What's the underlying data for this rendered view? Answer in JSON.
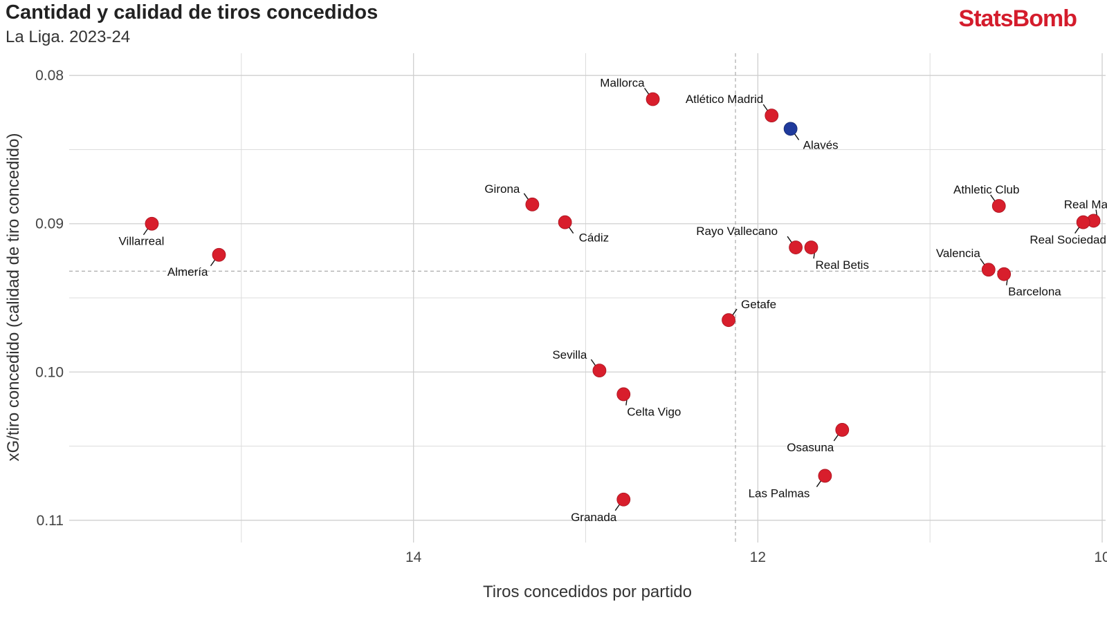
{
  "header": {
    "title": "Cantidad y calidad de tiros concedidos",
    "subtitle": "La Liga. 2023-24",
    "brand": "StatsBomb"
  },
  "colors": {
    "brand": "#d41c2c",
    "point": "#d81e2c",
    "highlight": "#1f3a9c",
    "grid": "#dcdcdc",
    "reference": "#aaaaaa"
  },
  "chart_data": {
    "type": "scatter",
    "xlabel": "Tiros concedidos por partido",
    "ylabel": "xG/tiro concedido (calidad de tiro concedido)",
    "x_reversed": true,
    "y_reversed": true,
    "xlim": [
      16.0,
      9.98
    ],
    "ylim": [
      0.0785,
      0.1115
    ],
    "x_ticks": [
      {
        "value": 14,
        "label": "14"
      },
      {
        "value": 12,
        "label": "12"
      },
      {
        "value": 10,
        "label": "10"
      }
    ],
    "y_ticks": [
      {
        "value": 0.08,
        "label": "0.08"
      },
      {
        "value": 0.09,
        "label": "0.09"
      },
      {
        "value": 0.1,
        "label": "0.10"
      },
      {
        "value": 0.11,
        "label": "0.11"
      }
    ],
    "x_minor": [
      15,
      13,
      11
    ],
    "y_minor": [
      0.085,
      0.095,
      0.105
    ],
    "reference_lines": {
      "x": 12.13,
      "y": 0.0932
    },
    "grid": true,
    "points": [
      {
        "team": "Mallorca",
        "x": 12.61,
        "y": 0.0816
      },
      {
        "team": "Atlético Madrid",
        "x": 11.92,
        "y": 0.0827
      },
      {
        "team": "Alavés",
        "x": 11.81,
        "y": 0.0836,
        "highlight": true
      },
      {
        "team": "Girona",
        "x": 13.31,
        "y": 0.0887
      },
      {
        "team": "Cádiz",
        "x": 13.12,
        "y": 0.0899
      },
      {
        "team": "Villarreal",
        "x": 15.52,
        "y": 0.09
      },
      {
        "team": "Almería",
        "x": 15.13,
        "y": 0.0921
      },
      {
        "team": "Athletic Club",
        "x": 10.6,
        "y": 0.0888
      },
      {
        "team": "Real Madrid",
        "x": 10.05,
        "y": 0.0898
      },
      {
        "team": "Real Sociedad",
        "x": 10.11,
        "y": 0.0899
      },
      {
        "team": "Rayo Vallecano",
        "x": 11.78,
        "y": 0.0916
      },
      {
        "team": "Real Betis",
        "x": 11.69,
        "y": 0.0916
      },
      {
        "team": "Valencia",
        "x": 10.66,
        "y": 0.0931
      },
      {
        "team": "Barcelona",
        "x": 10.57,
        "y": 0.0934
      },
      {
        "team": "Getafe",
        "x": 12.17,
        "y": 0.0965
      },
      {
        "team": "Sevilla",
        "x": 12.92,
        "y": 0.0999
      },
      {
        "team": "Celta Vigo",
        "x": 12.78,
        "y": 0.1015
      },
      {
        "team": "Osasuna",
        "x": 11.51,
        "y": 0.1039
      },
      {
        "team": "Las Palmas",
        "x": 11.61,
        "y": 0.107
      },
      {
        "team": "Granada",
        "x": 12.78,
        "y": 0.1086
      }
    ]
  }
}
